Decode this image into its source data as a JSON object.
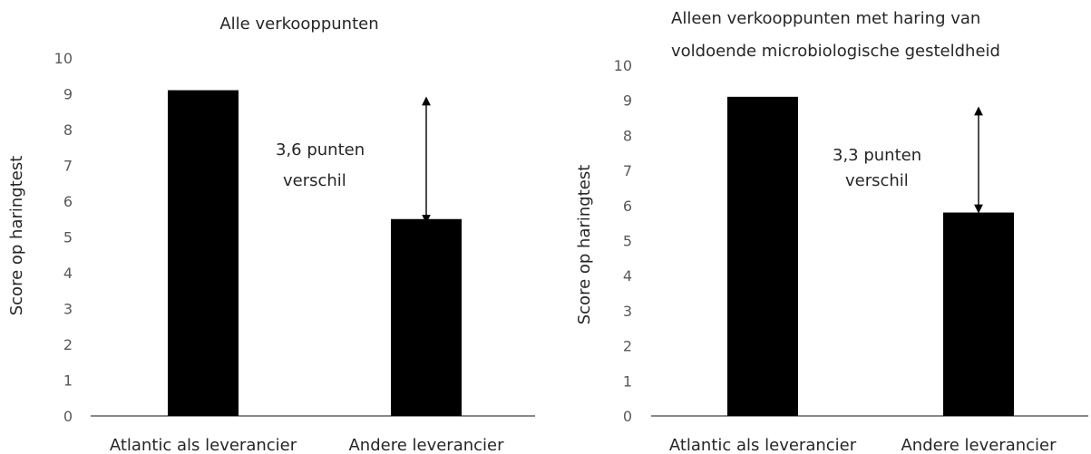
{
  "chart_data": [
    {
      "type": "bar",
      "title": "Alle verkooppunten",
      "ylabel": "Score op haringtest",
      "xlabel": "",
      "categories": [
        "Atlantic als leverancier",
        "Andere leverancier"
      ],
      "values": [
        9.1,
        5.5
      ],
      "ylim": [
        0,
        10
      ],
      "yticks": [
        0,
        1,
        2,
        3,
        4,
        5,
        6,
        7,
        8,
        9,
        10
      ],
      "grid": false,
      "bar_color": "#000000",
      "annotation": {
        "line1": "3,6 punten",
        "line2": "verschil",
        "arrow_from": 8.9,
        "arrow_to": 5.4
      }
    },
    {
      "type": "bar",
      "title": "Alleen verkooppunten met haring van",
      "title_line2": "voldoende microbiologische gesteldheid",
      "ylabel": "Score op haringtest",
      "xlabel": "",
      "categories": [
        "Atlantic als leverancier",
        "Andere leverancier"
      ],
      "values": [
        9.1,
        5.8
      ],
      "ylim": [
        0,
        10
      ],
      "yticks": [
        0,
        1,
        2,
        3,
        4,
        5,
        6,
        7,
        8,
        9,
        10
      ],
      "grid": false,
      "bar_color": "#000000",
      "annotation": {
        "line1": "3,3 punten",
        "line2": "verschil",
        "arrow_from": 8.8,
        "arrow_to": 5.8
      }
    }
  ]
}
